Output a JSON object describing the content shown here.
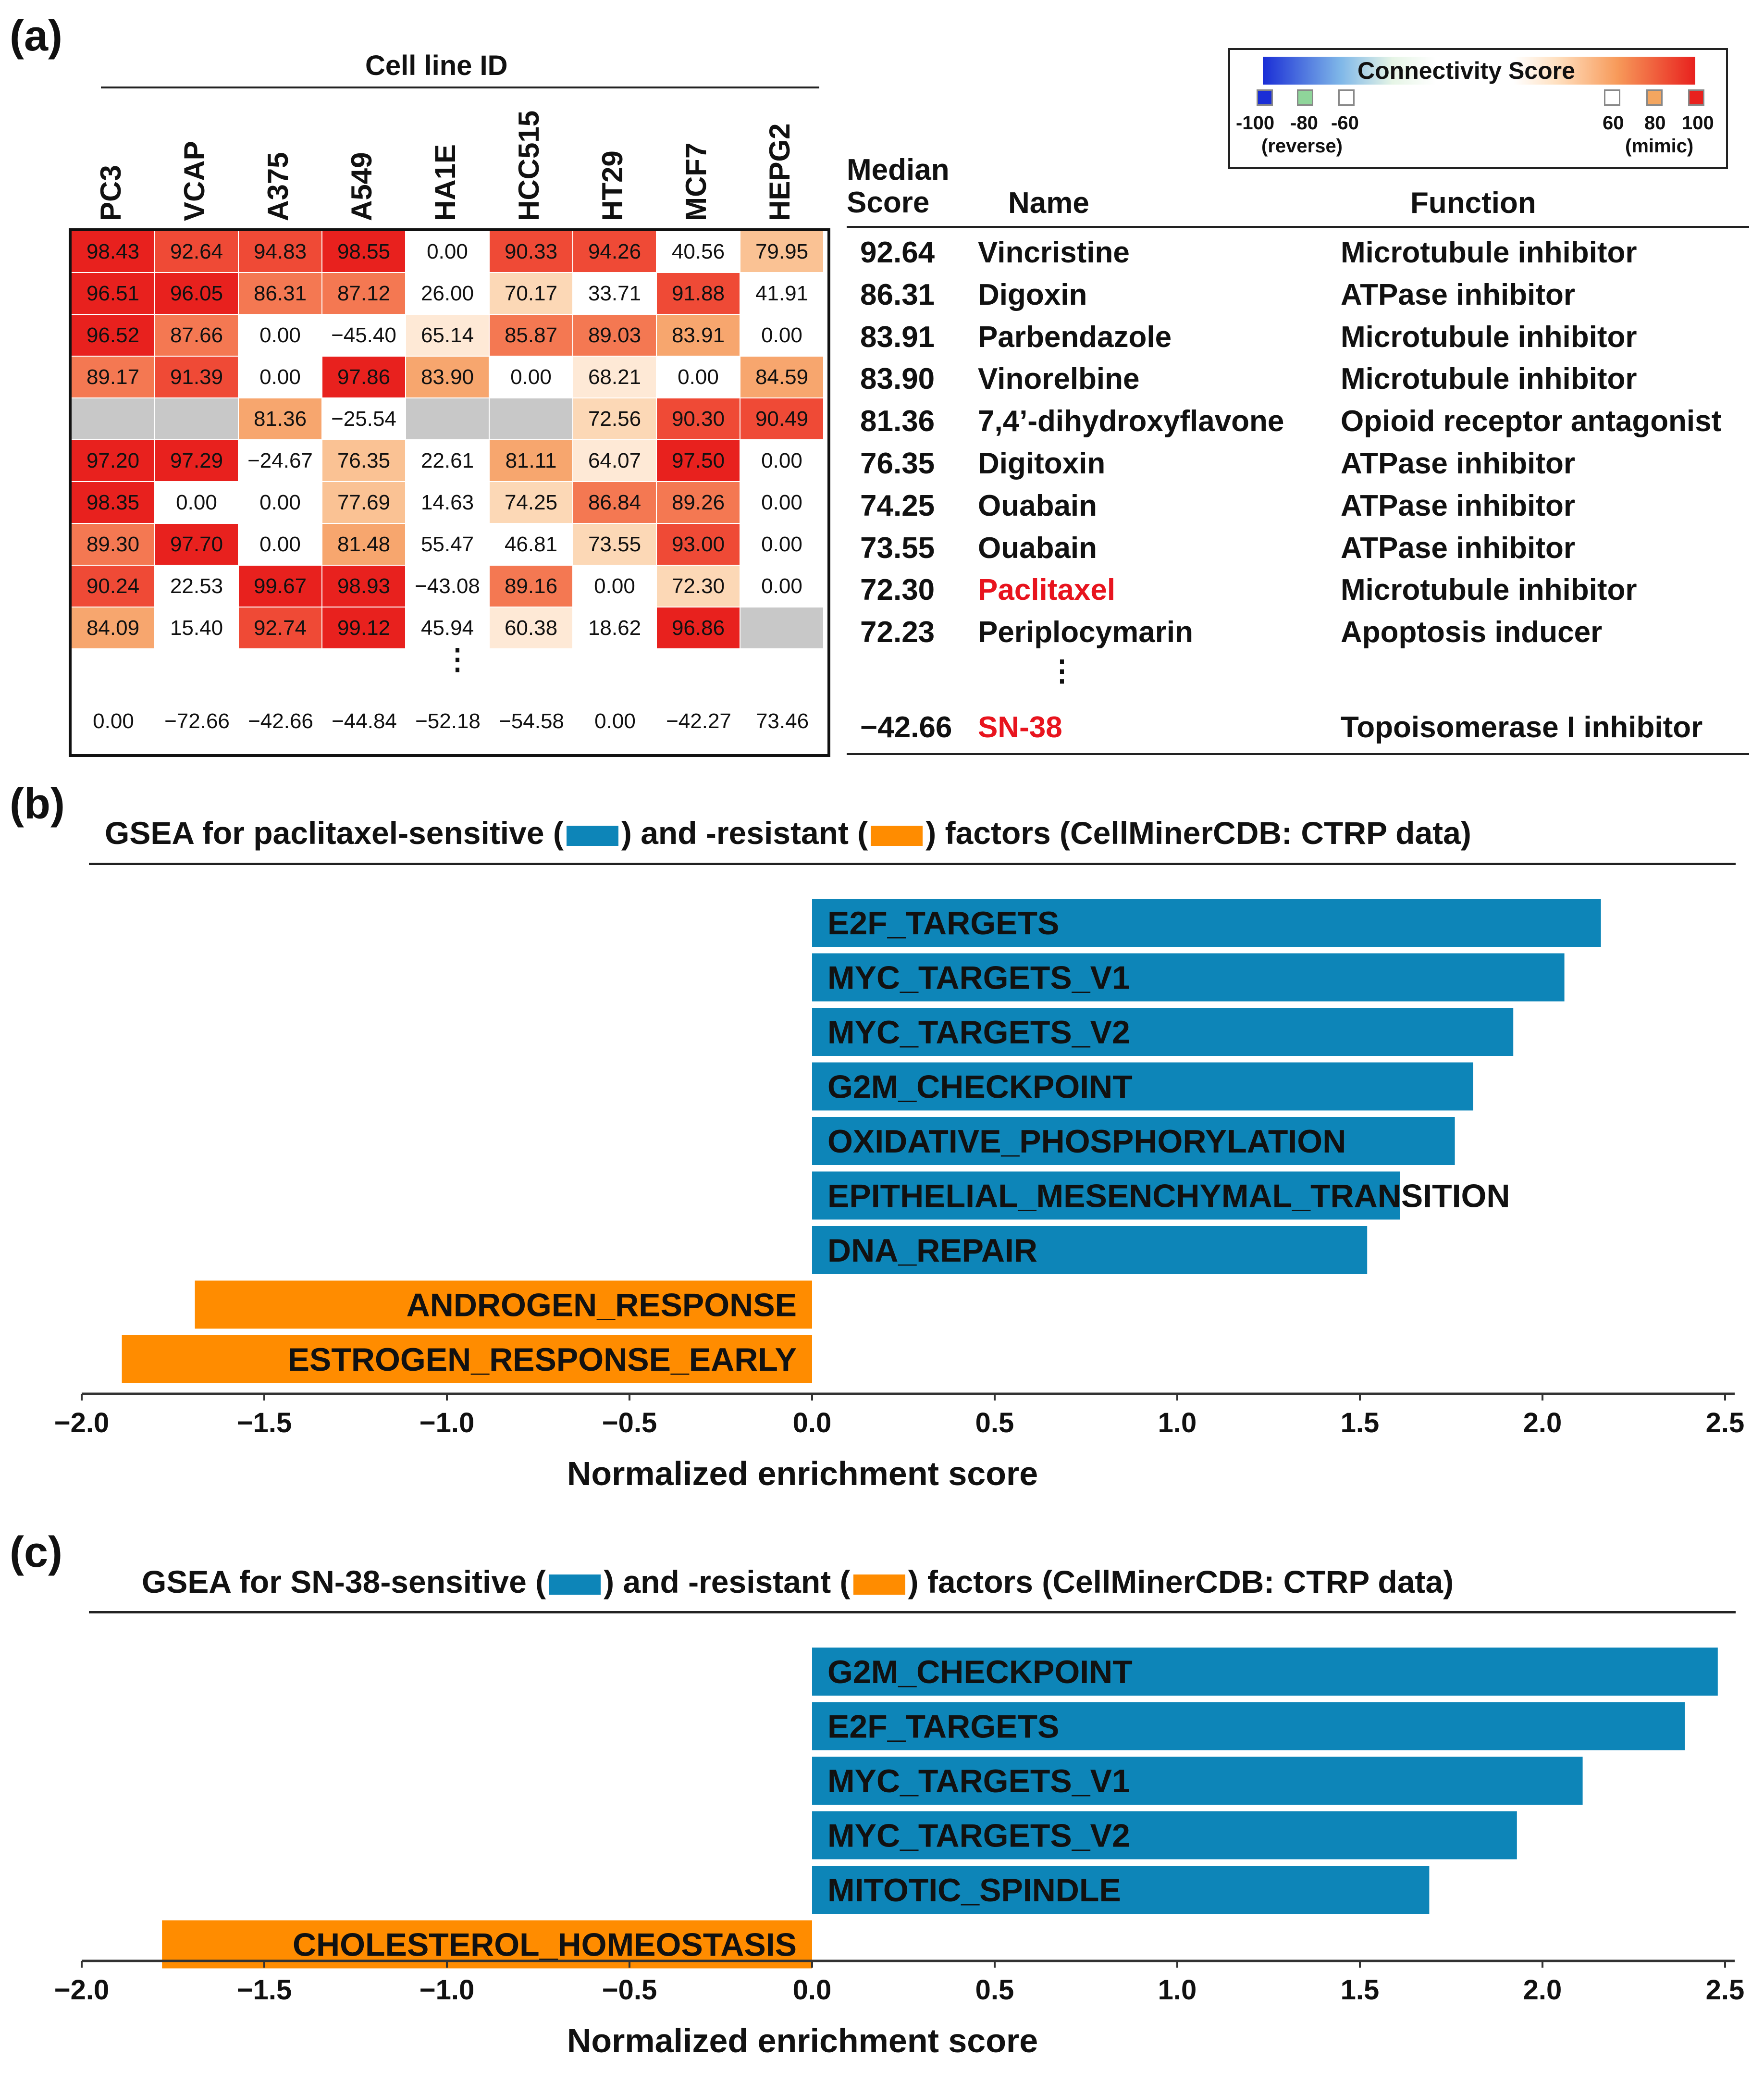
{
  "panel_labels": {
    "a": "(a)",
    "b": "(b)",
    "c": "(c)"
  },
  "heatmap": {
    "group_label": "Cell line ID",
    "columns": [
      "PC3",
      "VCAP",
      "A375",
      "A549",
      "HA1E",
      "HCC515",
      "HT29",
      "MCF7",
      "HEPG2"
    ],
    "rows": [
      [
        "98.43",
        "92.64",
        "94.83",
        "98.55",
        "0.00",
        "90.33",
        "94.26",
        "40.56",
        "79.95"
      ],
      [
        "96.51",
        "96.05",
        "86.31",
        "87.12",
        "26.00",
        "70.17",
        "33.71",
        "91.88",
        "41.91"
      ],
      [
        "96.52",
        "87.66",
        "0.00",
        "−45.40",
        "65.14",
        "85.87",
        "89.03",
        "83.91",
        "0.00"
      ],
      [
        "89.17",
        "91.39",
        "0.00",
        "97.86",
        "83.90",
        "0.00",
        "68.21",
        "0.00",
        "84.59"
      ],
      [
        "",
        "",
        "81.36",
        "−25.54",
        "",
        "",
        "72.56",
        "90.30",
        "90.49"
      ],
      [
        "97.20",
        "97.29",
        "−24.67",
        "76.35",
        "22.61",
        "81.11",
        "64.07",
        "97.50",
        "0.00"
      ],
      [
        "98.35",
        "0.00",
        "0.00",
        "77.69",
        "14.63",
        "74.25",
        "86.84",
        "89.26",
        "0.00"
      ],
      [
        "89.30",
        "97.70",
        "0.00",
        "81.48",
        "55.47",
        "46.81",
        "73.55",
        "93.00",
        "0.00"
      ],
      [
        "90.24",
        "22.53",
        "99.67",
        "98.93",
        "−43.08",
        "89.16",
        "0.00",
        "72.30",
        "0.00"
      ],
      [
        "84.09",
        "15.40",
        "92.74",
        "99.12",
        "45.94",
        "60.38",
        "18.62",
        "96.86",
        ""
      ]
    ],
    "ellipsis": "⋮",
    "bottom_row": [
      "0.00",
      "−72.66",
      "−42.66",
      "−44.84",
      "−52.18",
      "−54.58",
      "0.00",
      "−42.27",
      "73.46"
    ],
    "missing_color": "#c8c8c8"
  },
  "legend": {
    "title": "Connectivity Score",
    "ticks_left": [
      "-100",
      "-80",
      "-60"
    ],
    "ticks_right": [
      "60",
      "80",
      "100"
    ],
    "reverse_label": "(reverse)",
    "mimic_label": "(mimic)",
    "swatch_colors": [
      "#1a2ed6",
      "#8fd59a",
      "#ffffff",
      "#ffffff",
      "#f4a660",
      "#e8211e"
    ]
  },
  "drug_table": {
    "headers": {
      "score": "Median\nScore",
      "name": "Name",
      "function": "Function"
    },
    "rows": [
      {
        "score": "92.64",
        "name": "Vincristine",
        "function": "Microtubule inhibitor",
        "highlight": false
      },
      {
        "score": "86.31",
        "name": "Digoxin",
        "function": "ATPase inhibitor",
        "highlight": false
      },
      {
        "score": "83.91",
        "name": "Parbendazole",
        "function": "Microtubule inhibitor",
        "highlight": false
      },
      {
        "score": "83.90",
        "name": "Vinorelbine",
        "function": "Microtubule inhibitor",
        "highlight": false
      },
      {
        "score": "81.36",
        "name": "7,4’-dihydroxyflavone",
        "function": "Opioid receptor antagonist",
        "highlight": false
      },
      {
        "score": "76.35",
        "name": "Digitoxin",
        "function": "ATPase inhibitor",
        "highlight": false
      },
      {
        "score": "74.25",
        "name": "Ouabain",
        "function": "ATPase inhibitor",
        "highlight": false
      },
      {
        "score": "73.55",
        "name": "Ouabain",
        "function": "ATPase inhibitor",
        "highlight": false
      },
      {
        "score": "72.30",
        "name": "Paclitaxel",
        "function": "Microtubule inhibitor",
        "highlight": true
      },
      {
        "score": "72.23",
        "name": "Periplocymarin",
        "function": "Apoptosis inducer",
        "highlight": false
      }
    ],
    "ellipsis": "⋮",
    "last_row": {
      "score": "−42.66",
      "name": "SN-38",
      "function": "Topoisomerase I inhibitor",
      "highlight": true
    },
    "highlight_color": "#e8141e"
  },
  "chart_data": [
    {
      "type": "bar",
      "orientation": "horizontal",
      "title_parts": [
        "GSEA for paclitaxel-sensitive (",
        ") and -resistant (",
        ") factors (CellMinerCDB: CTRP data)"
      ],
      "categories": [
        "E2F_TARGETS",
        "MYC_TARGETS_V1",
        "MYC_TARGETS_V2",
        "G2M_CHECKPOINT",
        "OXIDATIVE_PHOSPHORYLATION",
        "EPITHELIAL_MESENCHYMAL_TRANSITION",
        "DNA_REPAIR",
        "ANDROGEN_RESPONSE",
        "ESTROGEN_RESPONSE_EARLY"
      ],
      "values": [
        2.16,
        2.06,
        1.92,
        1.81,
        1.76,
        1.61,
        1.52,
        -1.69,
        -1.89
      ],
      "xlabel": "Normalized enrichment score",
      "xlim": [
        -2.0,
        2.5
      ],
      "xticks": [
        "−2.0",
        "−1.5",
        "−1.0",
        "−0.5",
        "0.0",
        "0.5",
        "1.0",
        "1.5",
        "2.0",
        "2.5"
      ],
      "sensitive_color": "#0d85b8",
      "resistant_color": "#ff8c00"
    },
    {
      "type": "bar",
      "orientation": "horizontal",
      "title_parts": [
        "GSEA for SN-38-sensitive (",
        ") and -resistant (",
        ") factors (CellMinerCDB: CTRP data)"
      ],
      "categories": [
        "G2M_CHECKPOINT",
        "E2F_TARGETS",
        "MYC_TARGETS_V1",
        "MYC_TARGETS_V2",
        "MITOTIC_SPINDLE",
        "CHOLESTEROL_HOMEOSTASIS"
      ],
      "values": [
        2.48,
        2.39,
        2.11,
        1.93,
        1.69,
        -1.78
      ],
      "xlabel": "Normalized enrichment score",
      "xlim": [
        -2.0,
        2.5
      ],
      "xticks": [
        "−2.0",
        "−1.5",
        "−1.0",
        "−0.5",
        "0.0",
        "0.5",
        "1.0",
        "1.5",
        "2.0",
        "2.5"
      ],
      "sensitive_color": "#0d85b8",
      "resistant_color": "#ff8c00"
    }
  ]
}
